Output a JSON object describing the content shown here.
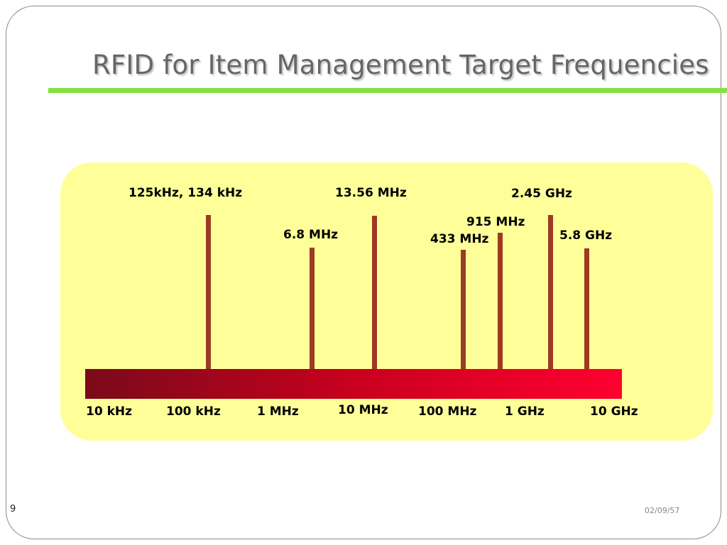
{
  "slide": {
    "title": "RFID for Item Management Target Frequencies",
    "page_number": "9",
    "date": "02/09/57"
  },
  "frequency_labels": {
    "f125": "125kHz, 134 kHz",
    "f6_8": "6.8 MHz",
    "f13_56": "13.56 MHz",
    "f433": "433 MHz",
    "f915": "915 MHz",
    "f2_45": "2.45 GHz",
    "f5_8": "5.8 GHz"
  },
  "scale_labels": {
    "s10khz": "10 kHz",
    "s100khz": "100 kHz",
    "s1mhz": "1 MHz",
    "s10mhz": "10 MHz",
    "s100mhz": "100 MHz",
    "s1ghz": "1 GHz",
    "s10ghz": "10 GHz"
  },
  "colors": {
    "title_rule": "#82e242",
    "panel": "#ffff99",
    "marker_lines": "#9c3a22",
    "spectrum_start": "#7a0a1a",
    "spectrum_end": "#ff0030"
  }
}
